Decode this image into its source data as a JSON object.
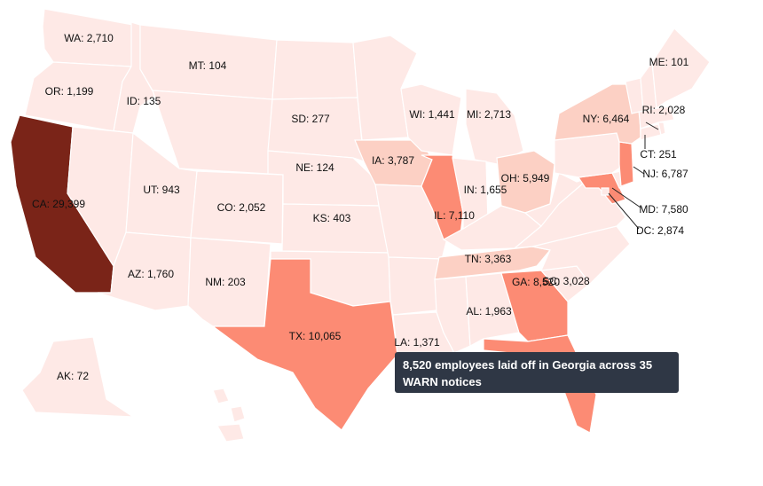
{
  "map": {
    "colors": {
      "c0": "#fee9e6",
      "c1": "#fcd0c4",
      "c2": "#fc8b74",
      "c3": "#7a2418"
    },
    "states": [
      {
        "code": "WA",
        "label": "WA: 2,710",
        "value": 2710,
        "fill": "c0"
      },
      {
        "code": "OR",
        "label": "OR: 1,199",
        "value": 1199,
        "fill": "c0"
      },
      {
        "code": "CA",
        "label": "CA: 29,399",
        "value": 29399,
        "fill": "c3"
      },
      {
        "code": "ID",
        "label": "ID: 135",
        "value": 135,
        "fill": "c0"
      },
      {
        "code": "NV",
        "label": "",
        "value": null,
        "fill": "c0"
      },
      {
        "code": "MT",
        "label": "MT: 104",
        "value": 104,
        "fill": "c0"
      },
      {
        "code": "WY",
        "label": "",
        "value": null,
        "fill": "c0"
      },
      {
        "code": "UT",
        "label": "UT: 943",
        "value": 943,
        "fill": "c0"
      },
      {
        "code": "AZ",
        "label": "AZ: 1,760",
        "value": 1760,
        "fill": "c0"
      },
      {
        "code": "CO",
        "label": "CO: 2,052",
        "value": 2052,
        "fill": "c0"
      },
      {
        "code": "NM",
        "label": "NM: 203",
        "value": 203,
        "fill": "c0"
      },
      {
        "code": "ND",
        "label": "",
        "value": null,
        "fill": "c0"
      },
      {
        "code": "SD",
        "label": "SD: 277",
        "value": 277,
        "fill": "c0"
      },
      {
        "code": "NE",
        "label": "NE: 124",
        "value": 124,
        "fill": "c0"
      },
      {
        "code": "KS",
        "label": "KS: 403",
        "value": 403,
        "fill": "c0"
      },
      {
        "code": "OK",
        "label": "",
        "value": null,
        "fill": "c0"
      },
      {
        "code": "TX",
        "label": "TX: 10,065",
        "value": 10065,
        "fill": "c2"
      },
      {
        "code": "MN",
        "label": "",
        "value": null,
        "fill": "c0"
      },
      {
        "code": "IA",
        "label": "IA: 3,787",
        "value": 3787,
        "fill": "c1"
      },
      {
        "code": "MO",
        "label": "",
        "value": null,
        "fill": "c0"
      },
      {
        "code": "AR",
        "label": "",
        "value": null,
        "fill": "c0"
      },
      {
        "code": "LA",
        "label": "LA: 1,371",
        "value": 1371,
        "fill": "c0"
      },
      {
        "code": "WI",
        "label": "WI: 1,441",
        "value": 1441,
        "fill": "c0"
      },
      {
        "code": "IL",
        "label": "IL: 7,110",
        "value": 7110,
        "fill": "c2"
      },
      {
        "code": "MI",
        "label": "MI: 2,713",
        "value": 2713,
        "fill": "c0"
      },
      {
        "code": "IN",
        "label": "IN: 1,655",
        "value": 1655,
        "fill": "c0"
      },
      {
        "code": "OH",
        "label": "OH: 5,949",
        "value": 5949,
        "fill": "c1"
      },
      {
        "code": "KY",
        "label": "",
        "value": null,
        "fill": "c0"
      },
      {
        "code": "TN",
        "label": "TN: 3,363",
        "value": 3363,
        "fill": "c1"
      },
      {
        "code": "MS",
        "label": "",
        "value": null,
        "fill": "c0"
      },
      {
        "code": "AL",
        "label": "AL: 1,963",
        "value": 1963,
        "fill": "c0"
      },
      {
        "code": "GA",
        "label": "GA: 8,520",
        "value": 8520,
        "fill": "c2"
      },
      {
        "code": "FL",
        "label": "",
        "value": null,
        "fill": "c2"
      },
      {
        "code": "SC",
        "label": "SC: 3,028",
        "value": 3028,
        "fill": "c0"
      },
      {
        "code": "NC",
        "label": "",
        "value": null,
        "fill": "c0"
      },
      {
        "code": "VA",
        "label": "",
        "value": null,
        "fill": "c0"
      },
      {
        "code": "WV",
        "label": "",
        "value": null,
        "fill": "c0"
      },
      {
        "code": "MD",
        "label": "MD: 7,580",
        "value": 7580,
        "fill": "c2"
      },
      {
        "code": "DC",
        "label": "DC: 2,874",
        "value": 2874,
        "fill": "c0"
      },
      {
        "code": "DE",
        "label": "",
        "value": null,
        "fill": "c0"
      },
      {
        "code": "PA",
        "label": "",
        "value": null,
        "fill": "c0"
      },
      {
        "code": "NJ",
        "label": "NJ: 6,787",
        "value": 6787,
        "fill": "c2"
      },
      {
        "code": "NY",
        "label": "NY: 6,464",
        "value": 6464,
        "fill": "c1"
      },
      {
        "code": "CT",
        "label": "CT: 251",
        "value": 251,
        "fill": "c0"
      },
      {
        "code": "RI",
        "label": "RI: 2,028",
        "value": 2028,
        "fill": "c0"
      },
      {
        "code": "MA",
        "label": "",
        "value": null,
        "fill": "c0"
      },
      {
        "code": "VT",
        "label": "",
        "value": null,
        "fill": "c0"
      },
      {
        "code": "NH",
        "label": "",
        "value": null,
        "fill": "c0"
      },
      {
        "code": "ME",
        "label": "ME: 101",
        "value": 101,
        "fill": "c0"
      },
      {
        "code": "AK",
        "label": "AK: 72",
        "value": 72,
        "fill": "c0"
      },
      {
        "code": "HI",
        "label": "",
        "value": null,
        "fill": "c0"
      }
    ]
  },
  "tooltip": {
    "text": "8,520 employees laid off in Georgia across 35 WARN notices"
  }
}
